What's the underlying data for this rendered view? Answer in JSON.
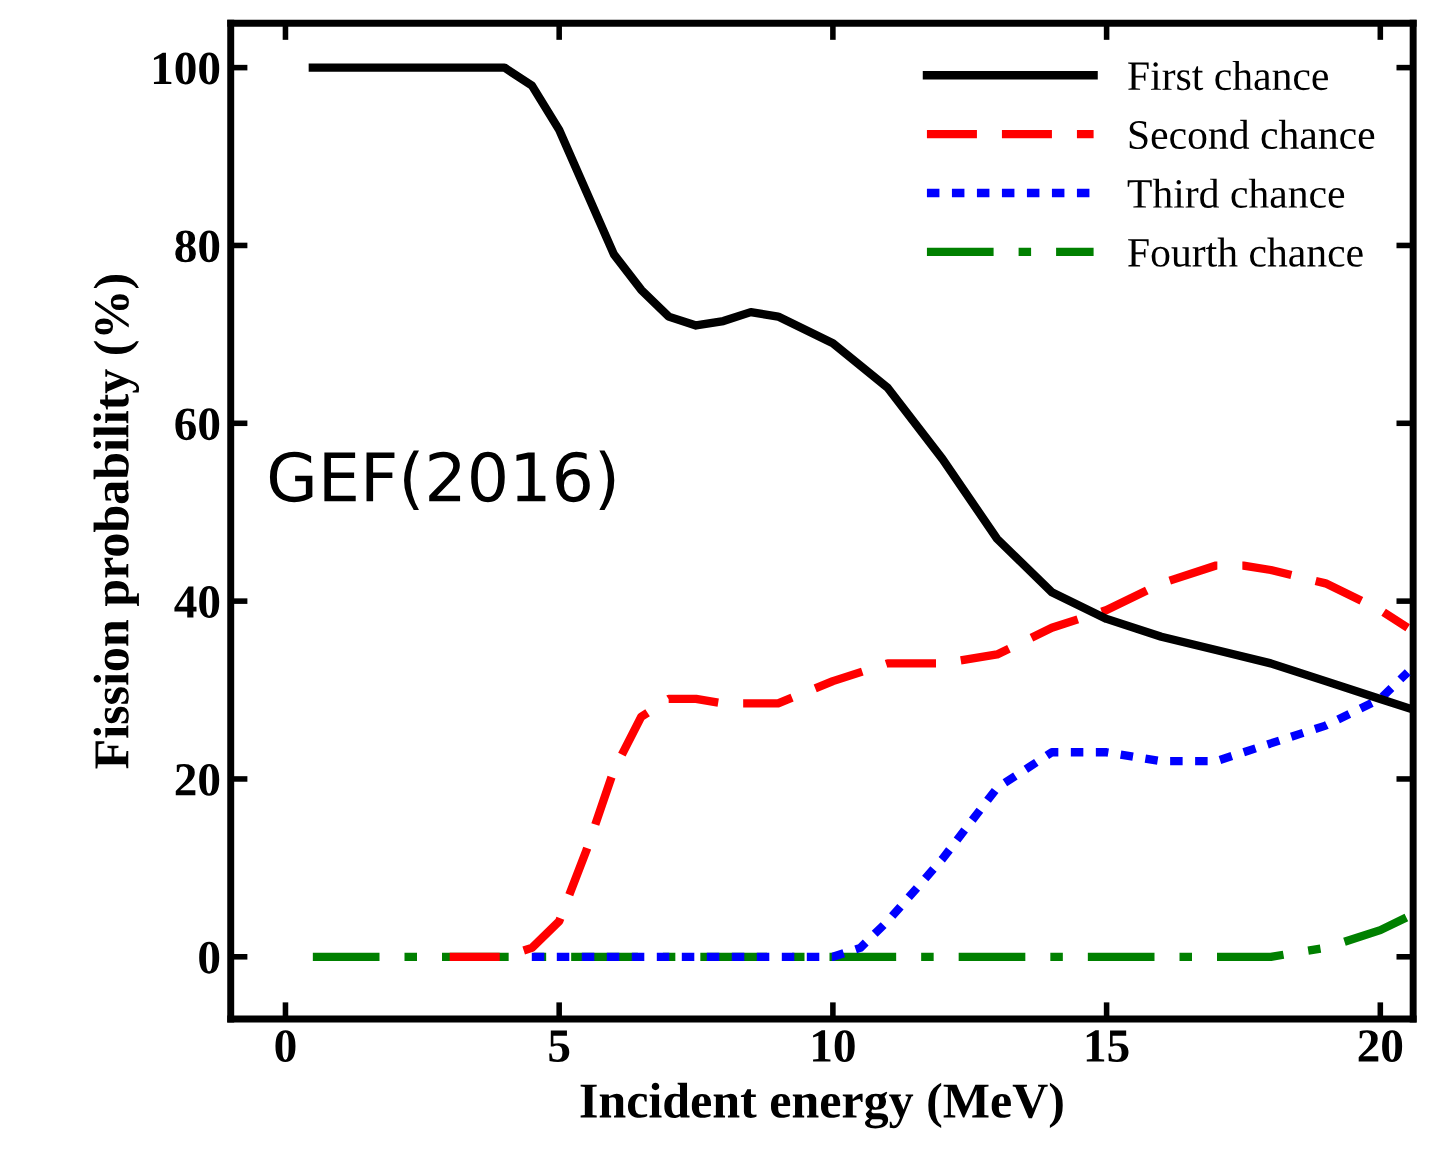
{
  "chart_data": {
    "type": "line",
    "xlabel": "Incident energy (MeV)",
    "ylabel": "Fission probability (%)",
    "xlim": [
      -1,
      20.6
    ],
    "ylim": [
      -7,
      105
    ],
    "xticks": [
      0,
      5,
      10,
      15,
      20
    ],
    "yticks": [
      0,
      20,
      40,
      60,
      80,
      100
    ],
    "legend": "top right",
    "grid": false,
    "marker": "none",
    "annotations": [
      "GEF(2016)"
    ],
    "series": [
      {
        "name": "First chance",
        "color": "#000000",
        "line_style": "solid",
        "x": [
          0.5,
          4,
          4.5,
          5,
          5.5,
          6,
          6.5,
          7,
          7.5,
          8,
          8.5,
          9,
          10,
          11,
          12,
          13,
          14,
          15,
          16,
          17,
          18,
          19,
          20,
          20.5
        ],
        "values": [
          100,
          100,
          98,
          93,
          86,
          79,
          75,
          72,
          71,
          71.5,
          72.5,
          72,
          69,
          64,
          56,
          47,
          41,
          38,
          36,
          34.5,
          33,
          31,
          29,
          28
        ]
      },
      {
        "name": "Second chance",
        "color": "#ff0000",
        "line_style": "dashed",
        "x": [
          3,
          4,
          4.5,
          5,
          5.5,
          6,
          6.5,
          7,
          7.5,
          8,
          9,
          10,
          11,
          12,
          13,
          14,
          15,
          16,
          17,
          17.5,
          18,
          19,
          20,
          20.5
        ],
        "values": [
          0,
          0,
          1,
          4,
          12,
          21,
          27,
          29,
          29,
          28.5,
          28.5,
          31,
          33,
          33,
          34,
          37,
          39,
          42,
          44,
          44,
          43.5,
          42,
          39,
          37
        ]
      },
      {
        "name": "Third chance",
        "color": "#0000ff",
        "line_style": "dotted",
        "x": [
          4.5,
          10,
          10.5,
          11,
          12,
          13,
          14,
          15,
          16,
          17,
          18,
          19,
          20,
          20.5
        ],
        "values": [
          0,
          0,
          1,
          4,
          11,
          19,
          23,
          23,
          22,
          22,
          24,
          26,
          29,
          32
        ]
      },
      {
        "name": "Fourth chance",
        "color": "#008000",
        "line_style": "dashdot",
        "x": [
          0.5,
          18,
          18.5,
          19,
          20,
          20.5
        ],
        "values": [
          0,
          0,
          0.5,
          1,
          3,
          4.5
        ]
      }
    ]
  }
}
